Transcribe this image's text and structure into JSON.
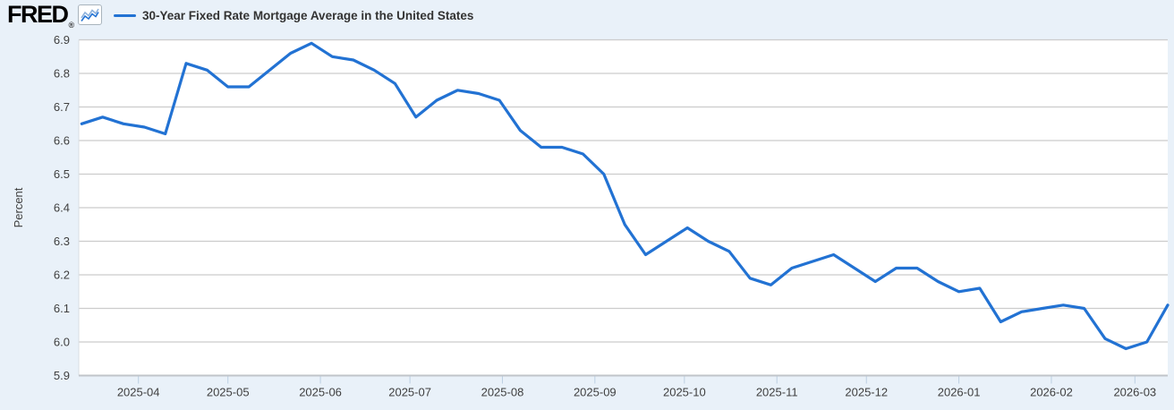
{
  "header": {
    "logo": "FRED",
    "registered_mark": "®",
    "series_title": "30-Year Fixed Rate Mortgage Average in the United States"
  },
  "colors": {
    "background": "#e9f1f9",
    "plot_background": "#ffffff",
    "grid": "#cccccc",
    "axis_line": "#c0c4c9",
    "plot_left_border": "#d9dee3",
    "series": "#2272d3",
    "tick_mark": "#bccfe2",
    "axis_text": "#3f3f3f",
    "legend_text": "#333333",
    "icon_line_back": "#8fb3dd",
    "icon_line_front": "#2272d3"
  },
  "chart_data": {
    "type": "line",
    "title": "30-Year Fixed Rate Mortgage Average in the United States",
    "xlabel": "",
    "ylabel": "Percent",
    "ylim": [
      5.9,
      6.9
    ],
    "yticks": [
      6.9,
      6.8,
      6.7,
      6.6,
      6.5,
      6.4,
      6.3,
      6.2,
      6.1,
      6.0,
      5.9
    ],
    "ytick_format_decimals": 1,
    "grid": "horizontal",
    "legend_position": "top-left",
    "xmin": "2025-03-12",
    "xmax": "2026-03-12",
    "xticks": [
      {
        "date": "2025-04-01",
        "label": "2025-04"
      },
      {
        "date": "2025-05-01",
        "label": "2025-05"
      },
      {
        "date": "2025-06-01",
        "label": "2025-06"
      },
      {
        "date": "2025-07-01",
        "label": "2025-07"
      },
      {
        "date": "2025-08-01",
        "label": "2025-08"
      },
      {
        "date": "2025-09-01",
        "label": "2025-09"
      },
      {
        "date": "2025-10-01",
        "label": "2025-10"
      },
      {
        "date": "2025-11-01",
        "label": "2025-11"
      },
      {
        "date": "2025-12-01",
        "label": "2025-12"
      },
      {
        "date": "2026-01-01",
        "label": "2026-01"
      },
      {
        "date": "2026-02-01",
        "label": "2026-02"
      },
      {
        "date": "2026-03-01",
        "label": "2026-03"
      }
    ],
    "series": [
      {
        "name": "30-Year Fixed Rate Mortgage Average in the United States",
        "frequency": "weekly",
        "units": "Percent",
        "x": [
          "2025-03-13",
          "2025-03-20",
          "2025-03-27",
          "2025-04-03",
          "2025-04-10",
          "2025-04-17",
          "2025-04-24",
          "2025-05-01",
          "2025-05-08",
          "2025-05-15",
          "2025-05-22",
          "2025-05-29",
          "2025-06-05",
          "2025-06-12",
          "2025-06-19",
          "2025-06-26",
          "2025-07-03",
          "2025-07-10",
          "2025-07-17",
          "2025-07-24",
          "2025-07-31",
          "2025-08-07",
          "2025-08-14",
          "2025-08-21",
          "2025-08-28",
          "2025-09-04",
          "2025-09-11",
          "2025-09-18",
          "2025-09-25",
          "2025-10-02",
          "2025-10-09",
          "2025-10-16",
          "2025-10-23",
          "2025-10-30",
          "2025-11-06",
          "2025-11-13",
          "2025-11-20",
          "2025-11-27",
          "2025-12-04",
          "2025-12-11",
          "2025-12-18",
          "2025-12-25",
          "2026-01-01",
          "2026-01-08",
          "2026-01-15",
          "2026-01-22",
          "2026-01-29",
          "2026-02-05",
          "2026-02-12",
          "2026-02-19",
          "2026-02-26",
          "2026-03-05",
          "2026-03-12"
        ],
        "values": [
          6.65,
          6.67,
          6.65,
          6.64,
          6.62,
          6.83,
          6.81,
          6.76,
          6.76,
          6.81,
          6.86,
          6.89,
          6.85,
          6.84,
          6.81,
          6.77,
          6.67,
          6.72,
          6.75,
          6.74,
          6.72,
          6.63,
          6.58,
          6.58,
          6.56,
          6.5,
          6.35,
          6.26,
          6.3,
          6.34,
          6.3,
          6.27,
          6.19,
          6.17,
          6.22,
          6.24,
          6.26,
          6.22,
          6.18,
          6.22,
          6.22,
          6.18,
          6.15,
          6.16,
          6.06,
          6.09,
          6.1,
          6.11,
          6.1,
          6.01,
          5.98,
          6.0,
          6.11
        ]
      }
    ]
  }
}
